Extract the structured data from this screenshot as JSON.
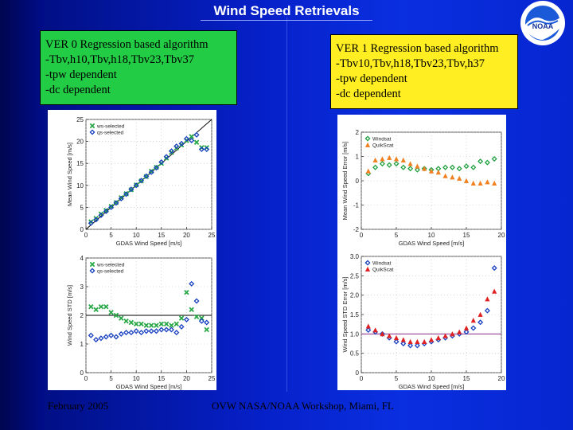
{
  "title": "Wind Speed Retrievals",
  "logo": {
    "text": "NOAA"
  },
  "colors": {
    "green_box": "#22cc44",
    "yellow_box": "#ffee22",
    "ws_green": "#2aa848",
    "qs_blue": "#1840c0",
    "hl_orange": "#f08020",
    "bias_red": "#e02020",
    "bias_green": "#22a040"
  },
  "boxes": {
    "ver0": {
      "lines": [
        "VER 0 Regression based algorithm",
        "-Tbv,h10,Tbv,h18,Tbv23,Tbv37",
        "-tpw dependent",
        "-dc dependent"
      ]
    },
    "ver1": {
      "lines": [
        "VER 1 Regression based algorithm",
        "-Tbv10,Tbv,h18,Tbv23,Tbv,h37",
        "-tpw dependent",
        "-dc dependent"
      ]
    }
  },
  "footer": {
    "date": "February 2005",
    "workshop": "OVW NASA/NOAA Workshop, Miami, FL"
  },
  "chart_data": [
    {
      "id": "ver0_mean",
      "type": "scatter",
      "xlabel": "GDAS Wind Speed [m/s]",
      "ylabel": "Mean Wind Speed [m/s]",
      "xlim": [
        0,
        25
      ],
      "ylim": [
        0,
        25
      ],
      "xticks": [
        "0",
        "5",
        "10",
        "15",
        "20",
        "25"
      ],
      "yticks": [
        "0",
        "5",
        "10",
        "15",
        "20",
        "25"
      ],
      "legend": [
        "ws-selected",
        "qs-selected"
      ],
      "reference_line": "y=x",
      "x": [
        1,
        2,
        3,
        4,
        5,
        6,
        7,
        8,
        9,
        10,
        11,
        12,
        13,
        14,
        15,
        16,
        17,
        18,
        19,
        20,
        21,
        22,
        23,
        24
      ],
      "series": [
        {
          "name": "ws-selected",
          "values": [
            1.7,
            2.5,
            3.5,
            4.3,
            5.2,
            6.1,
            7.2,
            8.1,
            9.0,
            10.1,
            11.0,
            12.0,
            13.2,
            14.1,
            15.0,
            16.2,
            17.5,
            18.5,
            19.2,
            20.2,
            21.1,
            19.8,
            18.6,
            18.6
          ]
        },
        {
          "name": "qs-selected",
          "values": [
            1.4,
            2.2,
            3.2,
            4.1,
            5.0,
            6.0,
            7.0,
            8.0,
            9.1,
            10.0,
            11.1,
            12.1,
            13.0,
            14.0,
            15.3,
            16.5,
            17.8,
            18.9,
            19.5,
            20.6,
            20.2,
            21.5,
            18.2,
            18.2
          ]
        }
      ]
    },
    {
      "id": "ver0_std",
      "type": "scatter",
      "xlabel": "GDAS Wind Speed [m/s]",
      "ylabel": "Wind Speed STD [m/s]",
      "xlim": [
        0,
        25
      ],
      "ylim": [
        0,
        4
      ],
      "xticks": [
        "0",
        "5",
        "10",
        "15",
        "20",
        "25"
      ],
      "yticks": [
        "0",
        "1",
        "2",
        "3",
        "4"
      ],
      "legend": [
        "ws-selected",
        "qs-selected"
      ],
      "reference_line": "y=2",
      "x": [
        1,
        2,
        3,
        4,
        5,
        6,
        7,
        8,
        9,
        10,
        11,
        12,
        13,
        14,
        15,
        16,
        17,
        18,
        19,
        20,
        21,
        22,
        23,
        24
      ],
      "series": [
        {
          "name": "ws-selected",
          "values": [
            2.3,
            2.2,
            2.3,
            2.3,
            2.1,
            2.0,
            1.9,
            1.8,
            1.75,
            1.7,
            1.7,
            1.65,
            1.65,
            1.65,
            1.7,
            1.7,
            1.65,
            1.7,
            1.9,
            2.8,
            2.2,
            1.95,
            1.9,
            1.5
          ]
        },
        {
          "name": "qs-selected",
          "values": [
            1.3,
            1.15,
            1.2,
            1.25,
            1.3,
            1.25,
            1.35,
            1.4,
            1.4,
            1.45,
            1.4,
            1.45,
            1.45,
            1.45,
            1.5,
            1.5,
            1.5,
            1.4,
            1.6,
            1.85,
            3.1,
            2.5,
            1.8,
            1.75
          ]
        }
      ]
    },
    {
      "id": "ver1_mean_error",
      "type": "scatter",
      "xlabel": "GDAS Wind Speed [m/s]",
      "ylabel": "Mean Wind Speed Error [m/s]",
      "xlim": [
        0,
        20
      ],
      "ylim": [
        -2,
        2
      ],
      "xticks": [
        "0",
        "5",
        "10",
        "15",
        "20"
      ],
      "yticks": [
        "-2",
        "-1",
        "0",
        "1",
        "2"
      ],
      "legend": [
        "Windsat",
        "QuikScat"
      ],
      "x": [
        1,
        2,
        3,
        4,
        5,
        6,
        7,
        8,
        9,
        10,
        11,
        12,
        13,
        14,
        15,
        16,
        17,
        18,
        19
      ],
      "series": [
        {
          "name": "Windsat",
          "values": [
            0.3,
            0.55,
            0.7,
            0.65,
            0.7,
            0.55,
            0.5,
            0.45,
            0.5,
            0.45,
            0.5,
            0.55,
            0.55,
            0.5,
            0.6,
            0.55,
            0.8,
            0.75,
            0.9
          ]
        },
        {
          "name": "QuikScat",
          "values": [
            0.4,
            0.85,
            0.9,
            0.95,
            0.9,
            0.85,
            0.7,
            0.6,
            0.5,
            0.4,
            0.35,
            0.2,
            0.15,
            0.1,
            0.0,
            -0.1,
            -0.1,
            -0.05,
            -0.1
          ]
        }
      ]
    },
    {
      "id": "ver1_std_error",
      "type": "scatter",
      "xlabel": "GDAS Wind Speed [m/s]",
      "ylabel": "Wind Speed STD Error [m/s]",
      "xlim": [
        0,
        20
      ],
      "ylim": [
        0,
        3
      ],
      "xticks": [
        "0",
        "5",
        "10",
        "15",
        "20"
      ],
      "yticks": [
        "0",
        "0.5",
        "1.0",
        "1.5",
        "2.0",
        "2.5",
        "3.0"
      ],
      "legend": [
        "Windsat",
        "QuikScat"
      ],
      "reference_line": "y=1",
      "x": [
        1,
        2,
        3,
        4,
        5,
        6,
        7,
        8,
        9,
        10,
        11,
        12,
        13,
        14,
        15,
        16,
        17,
        18,
        19
      ],
      "series": [
        {
          "name": "Windsat",
          "values": [
            1.1,
            1.05,
            1.0,
            0.9,
            0.8,
            0.75,
            0.7,
            0.7,
            0.75,
            0.8,
            0.85,
            0.9,
            0.95,
            1.0,
            1.05,
            1.15,
            1.3,
            1.6,
            2.7
          ]
        },
        {
          "name": "QuikScat",
          "values": [
            1.2,
            1.1,
            1.0,
            0.95,
            0.9,
            0.85,
            0.8,
            0.8,
            0.8,
            0.85,
            0.9,
            0.95,
            1.0,
            1.05,
            1.15,
            1.35,
            1.5,
            1.9,
            2.1
          ]
        }
      ]
    }
  ]
}
